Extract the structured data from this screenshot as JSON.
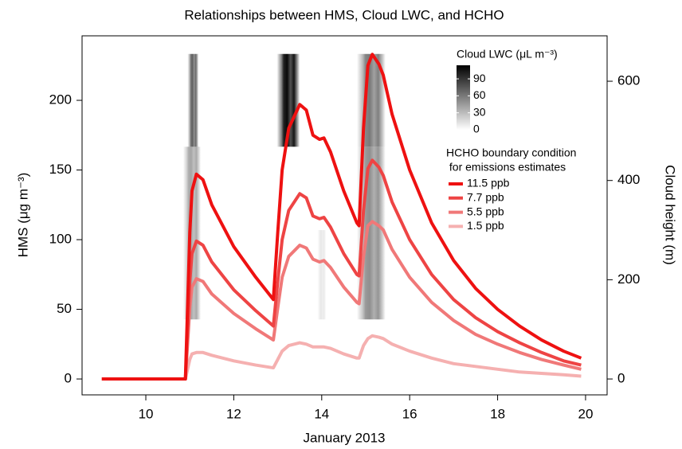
{
  "chart_data": {
    "type": "line",
    "title": "Relationships between HMS, Cloud LWC, and HCHO",
    "x_label": "January 2013",
    "y_label": "HMS (μg m⁻³)",
    "y2_label": "Cloud height (m)",
    "xlim": [
      8.55,
      20.49
    ],
    "xticks": [
      10,
      12,
      14,
      16,
      18,
      20
    ],
    "ylim": [
      -11.4,
      246.3
    ],
    "yticks": [
      0,
      50,
      100,
      150,
      200
    ],
    "y2lim": [
      -32,
      691.5
    ],
    "y2ticks": [
      0,
      200,
      400,
      600
    ],
    "grid": false,
    "legend_position": "top-right",
    "legend_title": [
      "HCHO boundary condition",
      " for emissions estimates"
    ],
    "x": [
      9,
      10.9,
      11,
      11.05,
      11.15,
      11.3,
      11.5,
      12,
      12.5,
      12.9,
      13,
      13.1,
      13.25,
      13.5,
      13.65,
      13.8,
      13.95,
      14.05,
      14.2,
      14.5,
      14.8,
      14.85,
      14.95,
      15.05,
      15.15,
      15.3,
      15.4,
      15.6,
      16,
      16.5,
      17,
      17.5,
      18,
      18.5,
      19,
      19.5,
      19.9
    ],
    "series": [
      {
        "name": "11.5 ppb",
        "color": "#ee1111",
        "values": [
          0,
          0,
          105,
          135,
          147,
          143,
          125,
          95,
          73,
          57,
          105,
          150,
          180,
          197,
          193,
          175,
          172,
          173,
          163,
          135,
          112,
          110,
          180,
          225,
          233,
          226,
          218,
          190,
          150,
          112,
          85,
          65,
          50,
          38,
          28,
          20,
          15
        ]
      },
      {
        "name": "7.7 ppb",
        "color": "#ee4444",
        "values": [
          0,
          0,
          70,
          90,
          99,
          96,
          84,
          64,
          49,
          38,
          70,
          100,
          121,
          133,
          130,
          117,
          115,
          116,
          109,
          90,
          75,
          74,
          121,
          151,
          157,
          152,
          146,
          127,
          100,
          75,
          57,
          44,
          34,
          26,
          19,
          13,
          10
        ]
      },
      {
        "name": "5.5 ppb",
        "color": "#f07878",
        "values": [
          0,
          0,
          51,
          66,
          72,
          70,
          61,
          47,
          36,
          28,
          51,
          73,
          88,
          96,
          94,
          86,
          84,
          85,
          80,
          66,
          55,
          54,
          88,
          110,
          113,
          110,
          107,
          93,
          73,
          55,
          42,
          32,
          25,
          19,
          14,
          10,
          7
        ]
      },
      {
        "name": "1.5 ppb",
        "color": "#f5b0b0",
        "values": [
          0,
          0,
          14,
          18,
          19,
          19,
          17,
          13,
          10,
          8,
          14,
          20,
          24,
          26,
          25,
          23,
          23,
          23,
          22,
          18,
          15,
          15,
          24,
          29,
          31,
          30,
          29,
          25,
          20,
          15,
          11,
          9,
          7,
          5,
          4,
          3,
          2
        ]
      }
    ],
    "lwc_title": "Cloud LWC (μL m⁻³)",
    "lwc_lim": [
      0,
      114
    ],
    "lwc_ticks": [
      0,
      30,
      60,
      90
    ],
    "clouds": [
      {
        "x": [
          10.85,
          11.25
        ],
        "height": [
          120,
          468
        ],
        "lwc": 40
      },
      {
        "x": [
          10.95,
          11.2
        ],
        "height": [
          468,
          655
        ],
        "lwc": 70
      },
      {
        "x": [
          12.98,
          13.5
        ],
        "height": [
          468,
          655
        ],
        "lwc": 110
      },
      {
        "x": [
          13.9,
          14.1
        ],
        "height": [
          120,
          300
        ],
        "lwc": 10
      },
      {
        "x": [
          14.8,
          15.45
        ],
        "height": [
          120,
          468
        ],
        "lwc": 50
      },
      {
        "x": [
          14.8,
          15.45
        ],
        "height": [
          468,
          655
        ],
        "lwc": 60
      }
    ]
  }
}
